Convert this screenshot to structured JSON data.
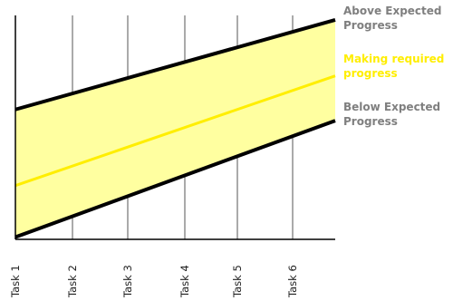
{
  "chart_data": {
    "type": "line",
    "title": "",
    "xlabel": "",
    "ylabel": "",
    "categories": [
      "Task 1",
      "Task 2",
      "Task 3",
      "Task 4",
      "Task 5",
      "Task 6"
    ],
    "grid": "vertical",
    "band": {
      "fill": "#ffffa0",
      "upper_series": "Above Expected Progress",
      "lower_series": "Below Expected Progress"
    },
    "series": [
      {
        "name": "Above Expected Progress",
        "label_lines": [
          "Above Expected",
          "Progress"
        ],
        "color": "#000000",
        "label_color": "#7f7f7f",
        "start": 0.58,
        "end": 0.98
      },
      {
        "name": "Making required progress",
        "label_lines": [
          "Making required",
          "progress"
        ],
        "color": "#ffee00",
        "label_color": "#ffee00",
        "start": 0.24,
        "end": 0.73
      },
      {
        "name": "Below Expected Progress",
        "label_lines": [
          "Below Expected",
          "Progress"
        ],
        "color": "#000000",
        "label_color": "#7f7f7f",
        "start": 0.01,
        "end": 0.53
      }
    ]
  }
}
